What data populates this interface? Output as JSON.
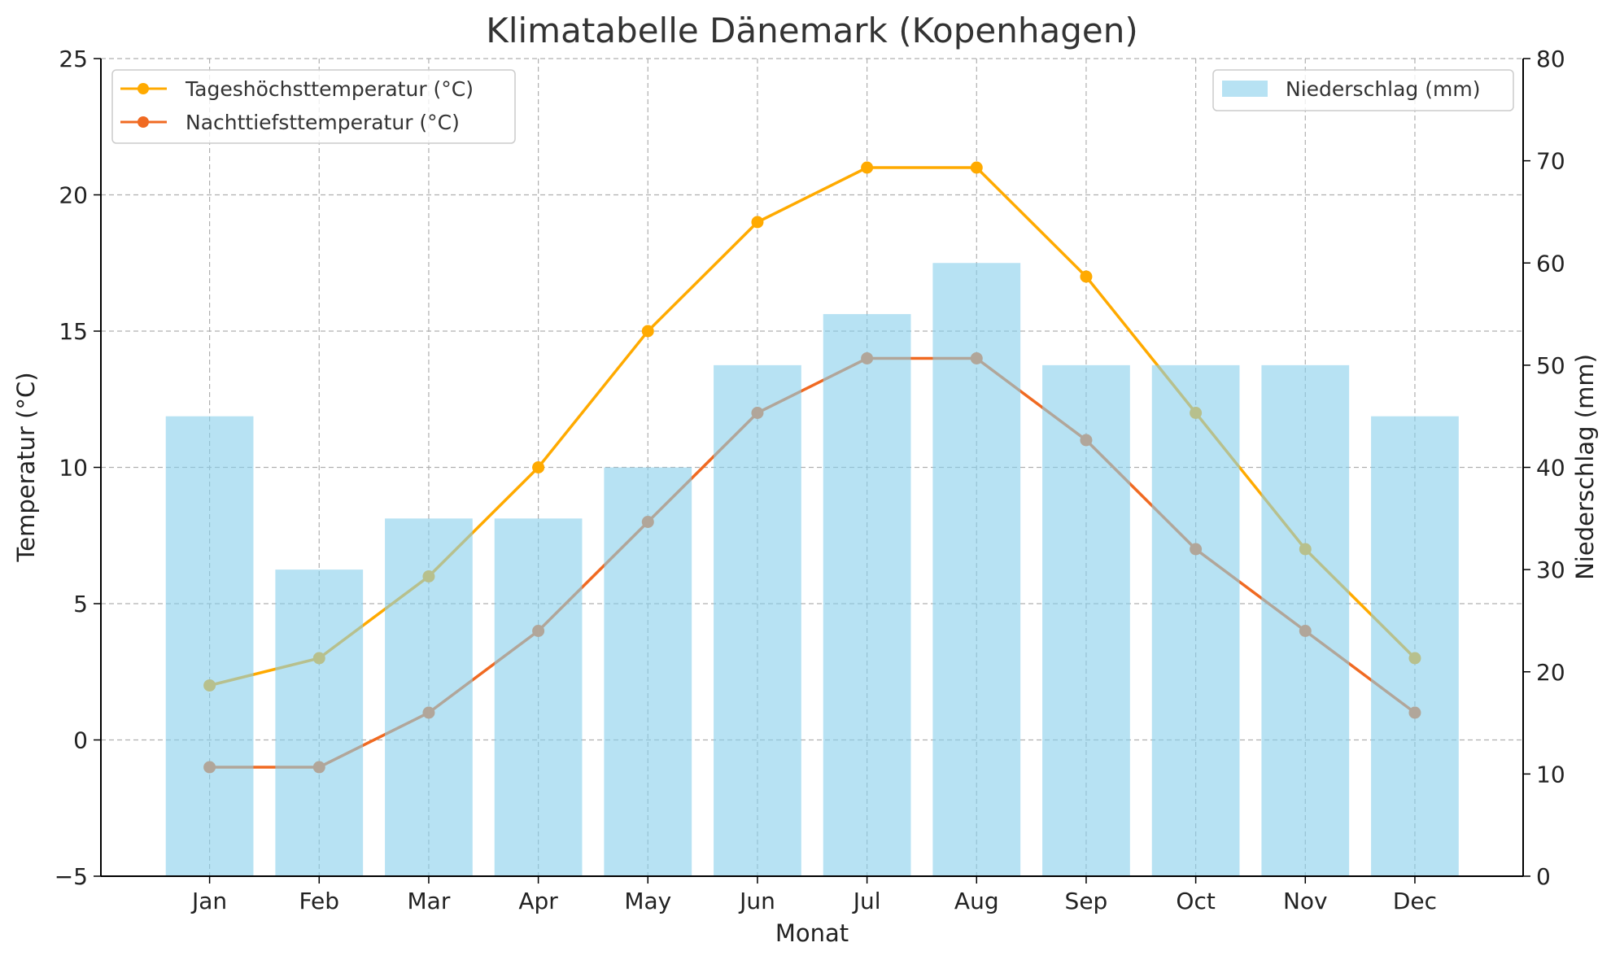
{
  "chart_data": {
    "type": "bar+line",
    "title": "Klimatabelle Dänemark (Kopenhagen)",
    "xlabel": "Monat",
    "ylabel": "Temperatur (°C)",
    "y2label": "Niederschlag (mm)",
    "categories": [
      "Jan",
      "Feb",
      "Mar",
      "Apr",
      "May",
      "Jun",
      "Jul",
      "Aug",
      "Sep",
      "Oct",
      "Nov",
      "Dec"
    ],
    "ylim": [
      -5,
      25
    ],
    "yticks": [
      -5,
      0,
      5,
      10,
      15,
      20,
      25
    ],
    "ytick_labels": [
      "−5",
      "0",
      "5",
      "10",
      "15",
      "20",
      "25"
    ],
    "y2lim": [
      0,
      80
    ],
    "y2ticks": [
      0,
      10,
      20,
      30,
      40,
      50,
      60,
      70,
      80
    ],
    "y2tick_labels": [
      "0",
      "10",
      "20",
      "30",
      "40",
      "50",
      "60",
      "70",
      "80"
    ],
    "grid": true,
    "series": [
      {
        "name": "Tageshöchsttemperatur (°C)",
        "type": "line",
        "axis": "left",
        "color": "#ffaa00",
        "values": [
          2,
          3,
          6,
          10,
          15,
          19,
          21,
          21,
          17,
          12,
          7,
          3
        ]
      },
      {
        "name": "Nachttiefsttemperatur (°C)",
        "type": "line",
        "axis": "left",
        "color": "#f06a22",
        "values": [
          -1,
          -1,
          1,
          4,
          8,
          12,
          14,
          14,
          11,
          7,
          4,
          1
        ]
      },
      {
        "name": "Niederschlag (mm)",
        "type": "bar",
        "axis": "right",
        "color": "#87ceeb",
        "values": [
          45,
          30,
          35,
          35,
          40,
          50,
          55,
          60,
          50,
          50,
          50,
          45
        ]
      }
    ],
    "legend": {
      "lines": "top-left",
      "bars": "top-right"
    }
  }
}
